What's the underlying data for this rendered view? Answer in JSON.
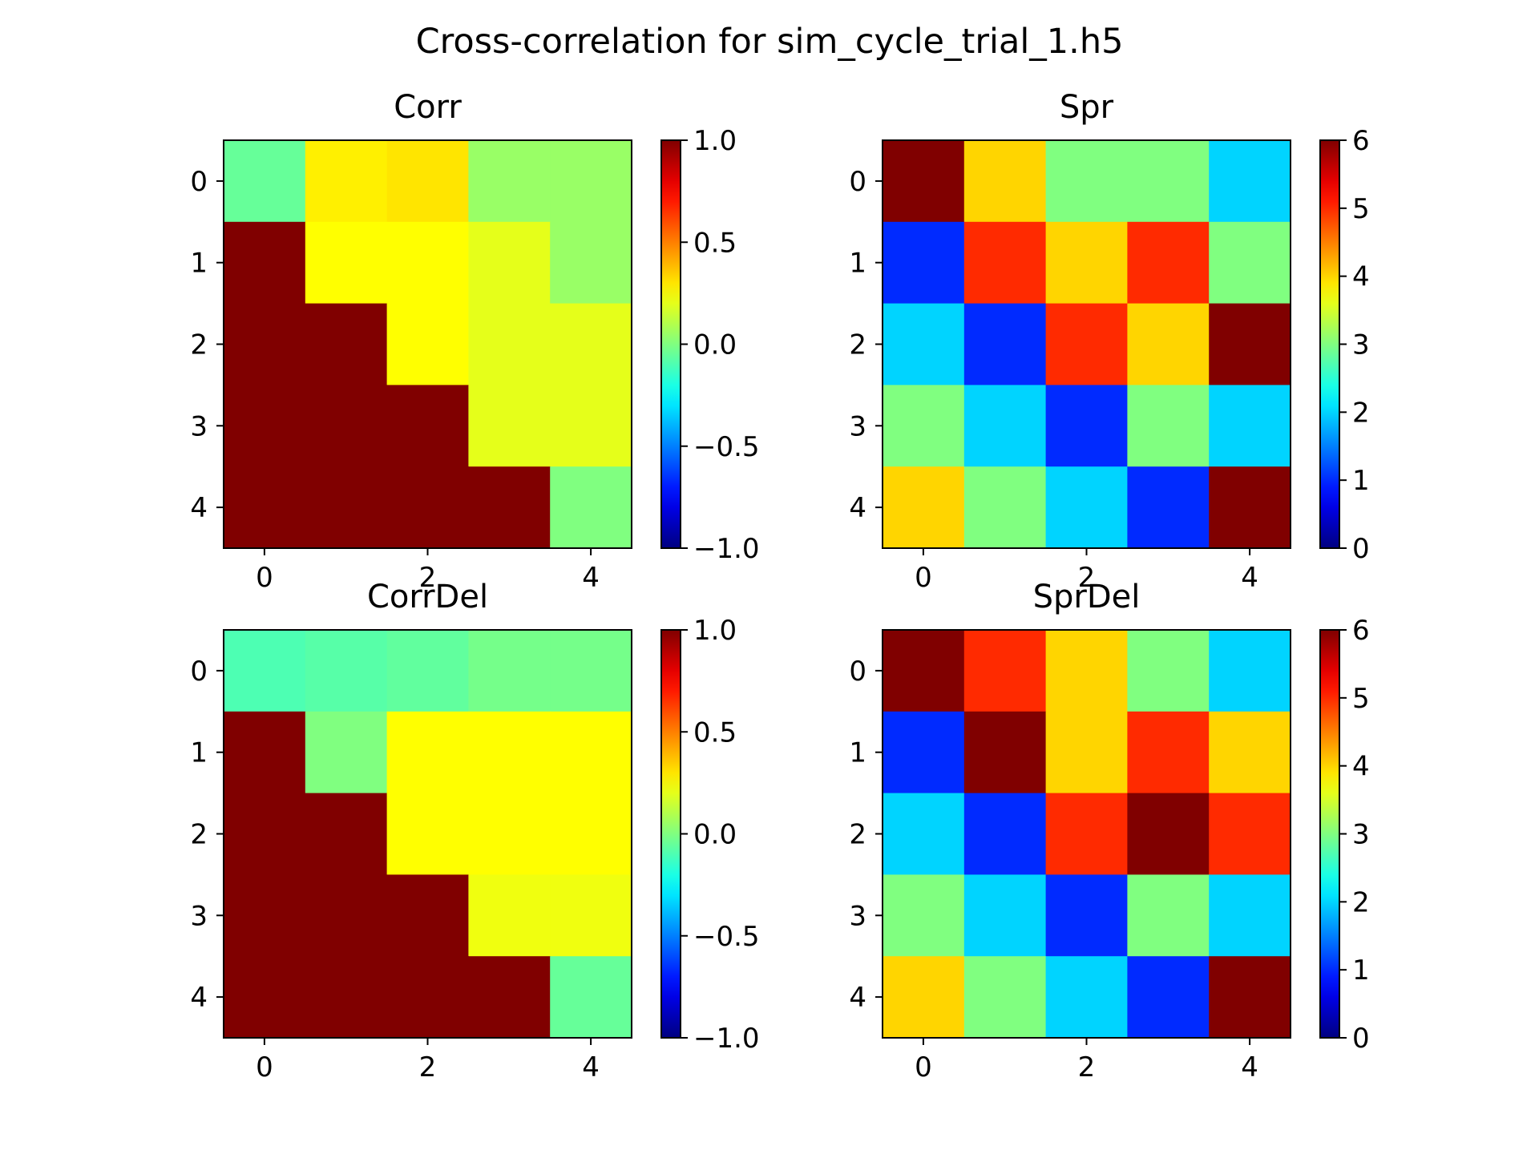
{
  "figure": {
    "suptitle": "Cross-correlation for sim_cycle_trial_1.h5"
  },
  "chart_data": [
    {
      "type": "heatmap",
      "title": "Corr",
      "xticks": [
        "0",
        "2",
        "4"
      ],
      "yticks": [
        "0",
        "1",
        "2",
        "3",
        "4"
      ],
      "colormap": "jet",
      "vmin": -1.0,
      "vmax": 1.0,
      "colorbar_ticks": [
        "1.0",
        "0.5",
        "0.0",
        "−0.5",
        "−1.0"
      ],
      "colorbar_tick_values": [
        1.0,
        0.5,
        0.0,
        -0.5,
        -1.0
      ],
      "values": [
        [
          -0.05,
          0.28,
          0.3,
          0.05,
          0.05
        ],
        [
          1.0,
          0.25,
          0.25,
          0.2,
          0.05
        ],
        [
          1.0,
          1.0,
          0.25,
          0.2,
          0.2
        ],
        [
          1.0,
          1.0,
          1.0,
          0.2,
          0.2
        ],
        [
          1.0,
          1.0,
          1.0,
          1.0,
          0.0
        ]
      ]
    },
    {
      "type": "heatmap",
      "title": "Spr",
      "xticks": [
        "0",
        "2",
        "4"
      ],
      "yticks": [
        "0",
        "1",
        "2",
        "3",
        "4"
      ],
      "colormap": "jet",
      "vmin": 0,
      "vmax": 6,
      "colorbar_ticks": [
        "6",
        "5",
        "4",
        "3",
        "2",
        "1",
        "0"
      ],
      "colorbar_tick_values": [
        6,
        5,
        4,
        3,
        2,
        1,
        0
      ],
      "values": [
        [
          6,
          4,
          3,
          3,
          2
        ],
        [
          1,
          5,
          4,
          5,
          3
        ],
        [
          2,
          1,
          5,
          4,
          6
        ],
        [
          3,
          2,
          1,
          3,
          2
        ],
        [
          4,
          3,
          2,
          1,
          6
        ]
      ]
    },
    {
      "type": "heatmap",
      "title": "CorrDel",
      "xticks": [
        "0",
        "2",
        "4"
      ],
      "yticks": [
        "0",
        "1",
        "2",
        "3",
        "4"
      ],
      "colormap": "jet",
      "vmin": -1.0,
      "vmax": 1.0,
      "colorbar_ticks": [
        "1.0",
        "0.5",
        "0.0",
        "−0.5",
        "−1.0"
      ],
      "colorbar_tick_values": [
        1.0,
        0.5,
        0.0,
        -0.5,
        -1.0
      ],
      "values": [
        [
          -0.1,
          -0.08,
          -0.06,
          -0.02,
          -0.02
        ],
        [
          1.0,
          0.0,
          0.25,
          0.25,
          0.25
        ],
        [
          1.0,
          1.0,
          0.25,
          0.25,
          0.25
        ],
        [
          1.0,
          1.0,
          1.0,
          0.22,
          0.22
        ],
        [
          1.0,
          1.0,
          1.0,
          1.0,
          -0.05
        ]
      ]
    },
    {
      "type": "heatmap",
      "title": "SprDel",
      "xticks": [
        "0",
        "2",
        "4"
      ],
      "yticks": [
        "0",
        "1",
        "2",
        "3",
        "4"
      ],
      "colormap": "jet",
      "vmin": 0,
      "vmax": 6,
      "colorbar_ticks": [
        "6",
        "5",
        "4",
        "3",
        "2",
        "1",
        "0"
      ],
      "colorbar_tick_values": [
        6,
        5,
        4,
        3,
        2,
        1,
        0
      ],
      "values": [
        [
          6,
          5,
          4,
          3,
          2
        ],
        [
          1,
          6,
          4,
          5,
          4
        ],
        [
          2,
          1,
          5,
          6,
          5
        ],
        [
          3,
          2,
          1,
          3,
          2
        ],
        [
          4,
          3,
          2,
          1,
          6
        ]
      ]
    }
  ]
}
